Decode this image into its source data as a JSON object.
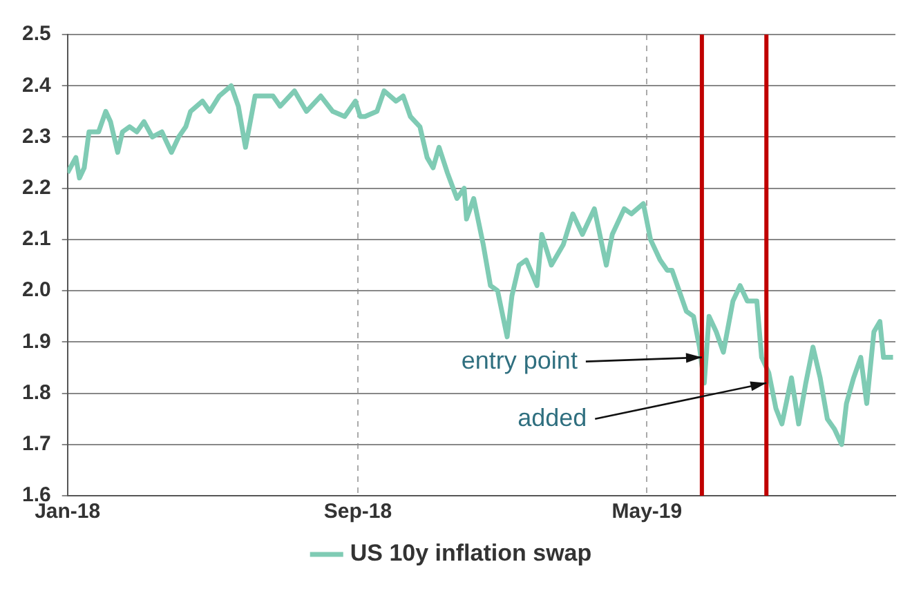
{
  "chart_data": {
    "type": "line",
    "x": [
      "2018-01-01",
      "2018-01-08",
      "2018-01-11",
      "2018-01-15",
      "2018-01-19",
      "2018-01-27",
      "2018-02-02",
      "2018-02-06",
      "2018-02-12",
      "2018-02-16",
      "2018-02-22",
      "2018-02-28",
      "2018-03-06",
      "2018-03-13",
      "2018-03-21",
      "2018-03-29",
      "2018-04-04",
      "2018-04-10",
      "2018-04-14",
      "2018-04-24",
      "2018-04-30",
      "2018-05-08",
      "2018-05-18",
      "2018-05-24",
      "2018-05-30",
      "2018-06-07",
      "2018-06-22",
      "2018-06-28",
      "2018-07-10",
      "2018-07-20",
      "2018-08-01",
      "2018-08-11",
      "2018-08-21",
      "2018-08-30",
      "2018-09-03",
      "2018-09-07",
      "2018-09-17",
      "2018-09-23",
      "2018-10-03",
      "2018-10-09",
      "2018-10-15",
      "2018-10-23",
      "2018-10-29",
      "2018-11-03",
      "2018-11-08",
      "2018-11-15",
      "2018-11-23",
      "2018-11-29",
      "2018-12-01",
      "2018-12-07",
      "2018-12-15",
      "2018-12-21",
      "2018-12-27",
      "2019-01-04",
      "2019-01-08",
      "2019-01-14",
      "2019-01-20",
      "2019-01-29",
      "2019-02-02",
      "2019-02-10",
      "2019-02-20",
      "2019-02-28",
      "2019-03-08",
      "2019-03-18",
      "2019-03-28",
      "2019-04-02",
      "2019-04-12",
      "2019-04-18",
      "2019-04-28",
      "2019-05-04",
      "2019-05-12",
      "2019-05-18",
      "2019-05-22",
      "2019-05-28",
      "2019-06-03",
      "2019-06-09",
      "2019-06-14",
      "2019-06-18",
      "2019-06-22",
      "2019-06-28",
      "2019-07-04",
      "2019-07-12",
      "2019-07-18",
      "2019-07-24",
      "2019-08-01",
      "2019-08-05",
      "2019-08-11",
      "2019-08-17",
      "2019-08-22",
      "2019-08-30",
      "2019-09-05",
      "2019-09-11",
      "2019-09-17",
      "2019-09-23",
      "2019-09-29",
      "2019-10-05",
      "2019-10-11",
      "2019-10-15",
      "2019-10-21",
      "2019-10-27",
      "2019-11-01",
      "2019-11-07",
      "2019-11-12",
      "2019-11-15",
      "2019-11-23"
    ],
    "series": [
      {
        "name": "US 10y inflation swap",
        "color": "#7fcbb4",
        "values": [
          2.23,
          2.26,
          2.22,
          2.24,
          2.31,
          2.31,
          2.35,
          2.33,
          2.27,
          2.31,
          2.32,
          2.31,
          2.33,
          2.3,
          2.31,
          2.27,
          2.3,
          2.32,
          2.35,
          2.37,
          2.35,
          2.38,
          2.4,
          2.36,
          2.28,
          2.38,
          2.38,
          2.36,
          2.39,
          2.35,
          2.38,
          2.35,
          2.34,
          2.37,
          2.34,
          2.34,
          2.35,
          2.39,
          2.37,
          2.38,
          2.34,
          2.32,
          2.26,
          2.24,
          2.28,
          2.23,
          2.18,
          2.2,
          2.14,
          2.18,
          2.09,
          2.01,
          2.0,
          1.91,
          1.99,
          2.05,
          2.06,
          2.01,
          2.11,
          2.05,
          2.09,
          2.15,
          2.11,
          2.16,
          2.05,
          2.11,
          2.16,
          2.15,
          2.17,
          2.1,
          2.06,
          2.04,
          2.04,
          2.0,
          1.96,
          1.95,
          1.89,
          1.82,
          1.95,
          1.92,
          1.88,
          1.98,
          2.01,
          1.98,
          1.98,
          1.87,
          1.84,
          1.77,
          1.74,
          1.83,
          1.74,
          1.82,
          1.89,
          1.83,
          1.75,
          1.73,
          1.7,
          1.78,
          1.83,
          1.87,
          1.78,
          1.92,
          1.94,
          1.87,
          1.87
        ]
      }
    ],
    "xlim": [
      "2018-01-01",
      "2019-11-25"
    ],
    "xticks": [
      {
        "value": "2018-01-01",
        "label": "Jan-18"
      },
      {
        "value": "2018-09-01",
        "label": "Sep-18"
      },
      {
        "value": "2019-05-01",
        "label": "May-19"
      }
    ],
    "ylim": [
      1.6,
      2.5
    ],
    "yticks": [
      {
        "value": 1.6,
        "label": "1.6"
      },
      {
        "value": 1.7,
        "label": "1.7"
      },
      {
        "value": 1.8,
        "label": "1.8"
      },
      {
        "value": 1.9,
        "label": "1.9"
      },
      {
        "value": 2.0,
        "label": "2.0"
      },
      {
        "value": 2.1,
        "label": "2.1"
      },
      {
        "value": 2.2,
        "label": "2.2"
      },
      {
        "value": 2.3,
        "label": "2.3"
      },
      {
        "value": 2.4,
        "label": "2.4"
      },
      {
        "value": 2.5,
        "label": "2.5"
      }
    ],
    "ref_lines": [
      {
        "axis": "x",
        "value": "2019-06-16",
        "color": "#c00000"
      },
      {
        "axis": "x",
        "value": "2019-08-09",
        "color": "#c00000"
      }
    ],
    "annotations": [
      {
        "text": "entry point",
        "x": "2019-06-16",
        "y": 1.87
      },
      {
        "text": "added",
        "x": "2019-08-09",
        "y": 1.82
      }
    ],
    "grid": true,
    "legend": "bottom",
    "marker": "none",
    "line_style": "solid"
  }
}
